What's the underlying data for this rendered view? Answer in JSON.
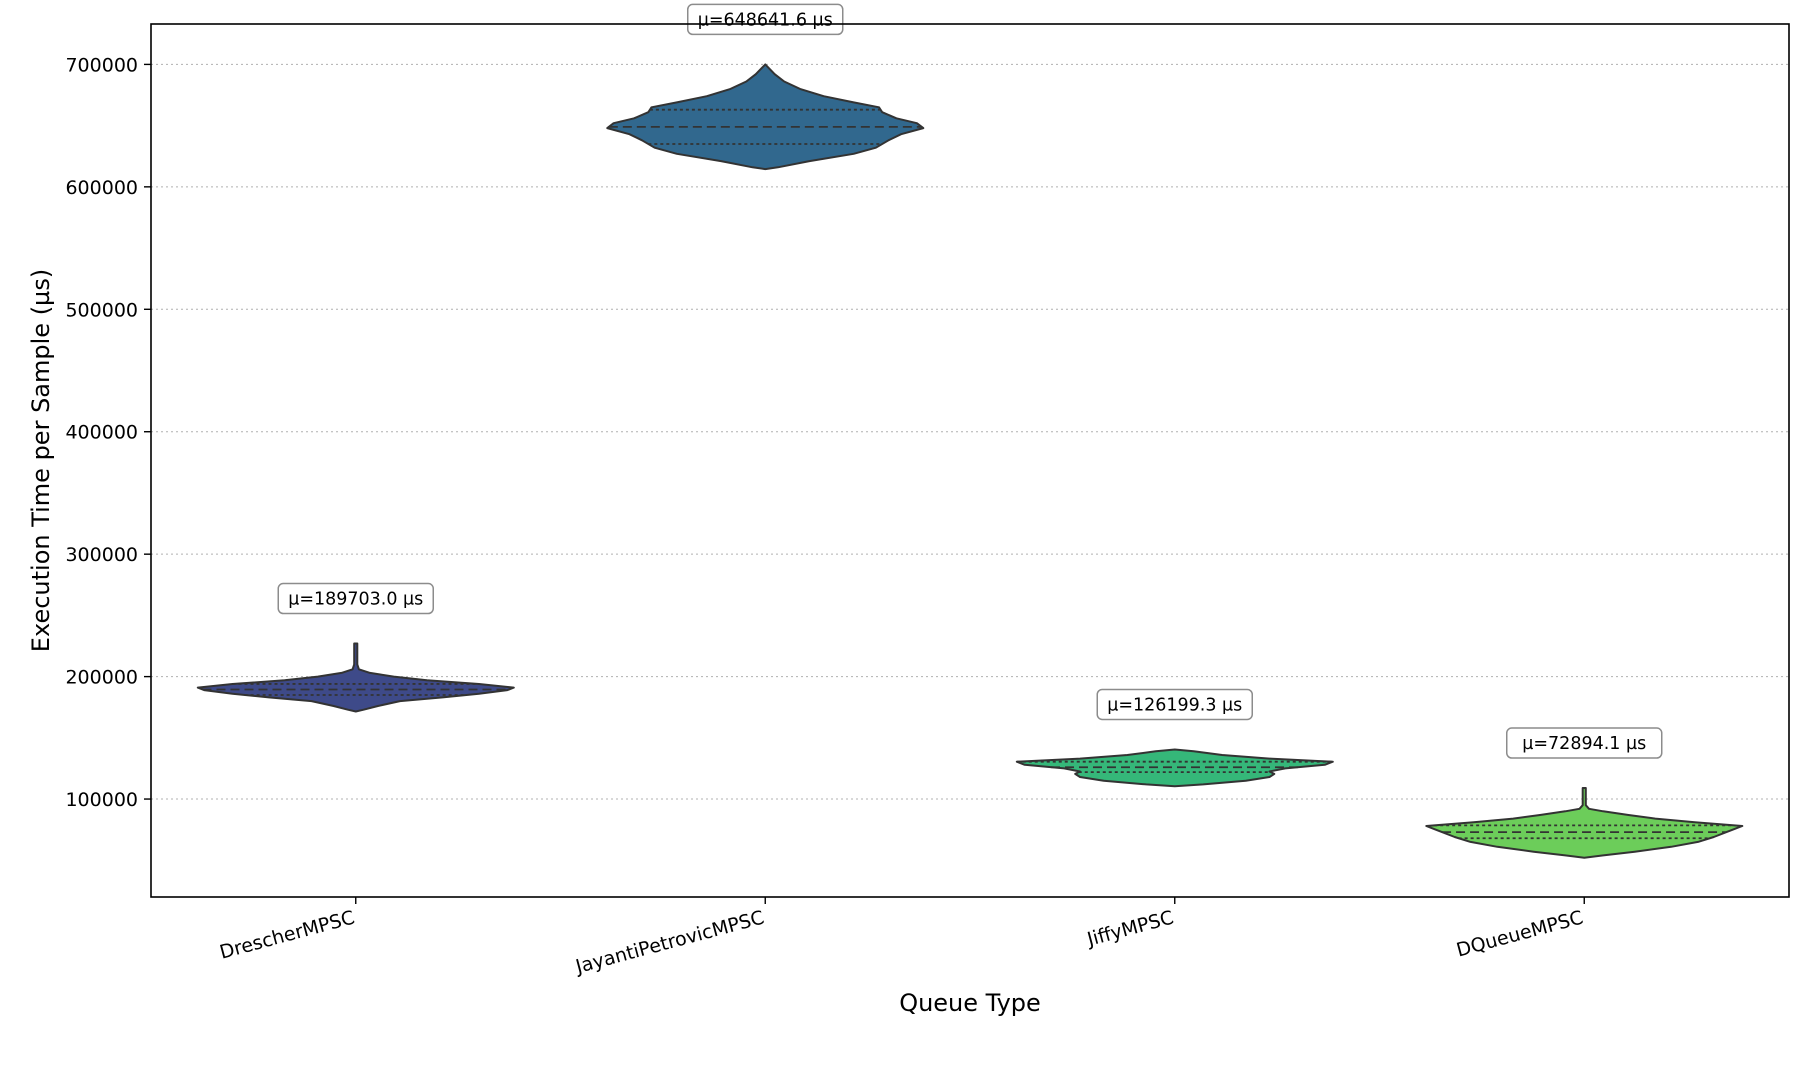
{
  "chart_data": {
    "type": "violin",
    "title": "",
    "xlabel": "Queue Type",
    "ylabel": "Execution Time per Sample (µs)",
    "ylim": [
      20000,
      733000
    ],
    "y_ticks": [
      100000,
      200000,
      300000,
      400000,
      500000,
      600000,
      700000
    ],
    "grid": "horizontal dotted",
    "categories": [
      "DrescherMPSC",
      "JayantiPetrovicMPSC",
      "JiffyMPSC",
      "DQueueMPSC"
    ],
    "series": [
      {
        "category": "DrescherMPSC",
        "color": "#3e4a89",
        "mean_label": "µ=189703.0 µs",
        "min": 171500,
        "max": 227000,
        "q1": 185000,
        "median": 189500,
        "q3": 194000,
        "profile": [
          [
            171500,
            0.0
          ],
          [
            173000,
            0.05
          ],
          [
            176000,
            0.14
          ],
          [
            180000,
            0.28
          ],
          [
            183000,
            0.55
          ],
          [
            186000,
            0.78
          ],
          [
            189000,
            0.96
          ],
          [
            191000,
            1.0
          ],
          [
            194000,
            0.78
          ],
          [
            197000,
            0.45
          ],
          [
            200000,
            0.24
          ],
          [
            203000,
            0.09
          ],
          [
            206000,
            0.02
          ],
          [
            210000,
            0.01
          ],
          [
            227000,
            0.01
          ]
        ]
      },
      {
        "category": "JayantiPetrovicMPSC",
        "color": "#31688e",
        "mean_label": "µ=648641.6 µs",
        "min": 614500,
        "max": 700000,
        "q1": 635000,
        "median": 649000,
        "q3": 663000,
        "profile": [
          [
            614500,
            0.0
          ],
          [
            616000,
            0.08
          ],
          [
            621000,
            0.28
          ],
          [
            627000,
            0.56
          ],
          [
            632000,
            0.7
          ],
          [
            638000,
            0.78
          ],
          [
            643000,
            0.86
          ],
          [
            648000,
            1.0
          ],
          [
            652000,
            0.96
          ],
          [
            656000,
            0.83
          ],
          [
            661000,
            0.74
          ],
          [
            665000,
            0.72
          ],
          [
            669000,
            0.56
          ],
          [
            674000,
            0.37
          ],
          [
            680000,
            0.22
          ],
          [
            686000,
            0.12
          ],
          [
            692000,
            0.06
          ],
          [
            696000,
            0.03
          ],
          [
            700000,
            0.0
          ]
        ]
      },
      {
        "category": "JiffyMPSC",
        "color": "#35b779",
        "mean_label": "µ=126199.3 µs",
        "min": 110500,
        "max": 140500,
        "q1": 122000,
        "median": 126000,
        "q3": 130500,
        "profile": [
          [
            110500,
            0.0
          ],
          [
            112000,
            0.18
          ],
          [
            115000,
            0.45
          ],
          [
            118000,
            0.6
          ],
          [
            120500,
            0.63
          ],
          [
            122500,
            0.6
          ],
          [
            125000,
            0.7
          ],
          [
            128000,
            0.95
          ],
          [
            130500,
            1.0
          ],
          [
            133000,
            0.6
          ],
          [
            136000,
            0.3
          ],
          [
            139000,
            0.12
          ],
          [
            140500,
            0.0
          ]
        ]
      },
      {
        "category": "DQueueMPSC",
        "color": "#6ccd5a",
        "mean_label": "µ=72894.1 µs",
        "min": 52000,
        "max": 109000,
        "q1": 68000,
        "median": 73000,
        "q3": 78500,
        "profile": [
          [
            52000,
            0.0
          ],
          [
            54000,
            0.12
          ],
          [
            57000,
            0.32
          ],
          [
            61000,
            0.55
          ],
          [
            65000,
            0.72
          ],
          [
            69000,
            0.82
          ],
          [
            73000,
            0.9
          ],
          [
            76000,
            0.96
          ],
          [
            78000,
            1.0
          ],
          [
            81000,
            0.7
          ],
          [
            84000,
            0.45
          ],
          [
            87000,
            0.28
          ],
          [
            90000,
            0.12
          ],
          [
            92000,
            0.03
          ],
          [
            95000,
            0.01
          ],
          [
            109000,
            0.01
          ]
        ]
      }
    ]
  }
}
